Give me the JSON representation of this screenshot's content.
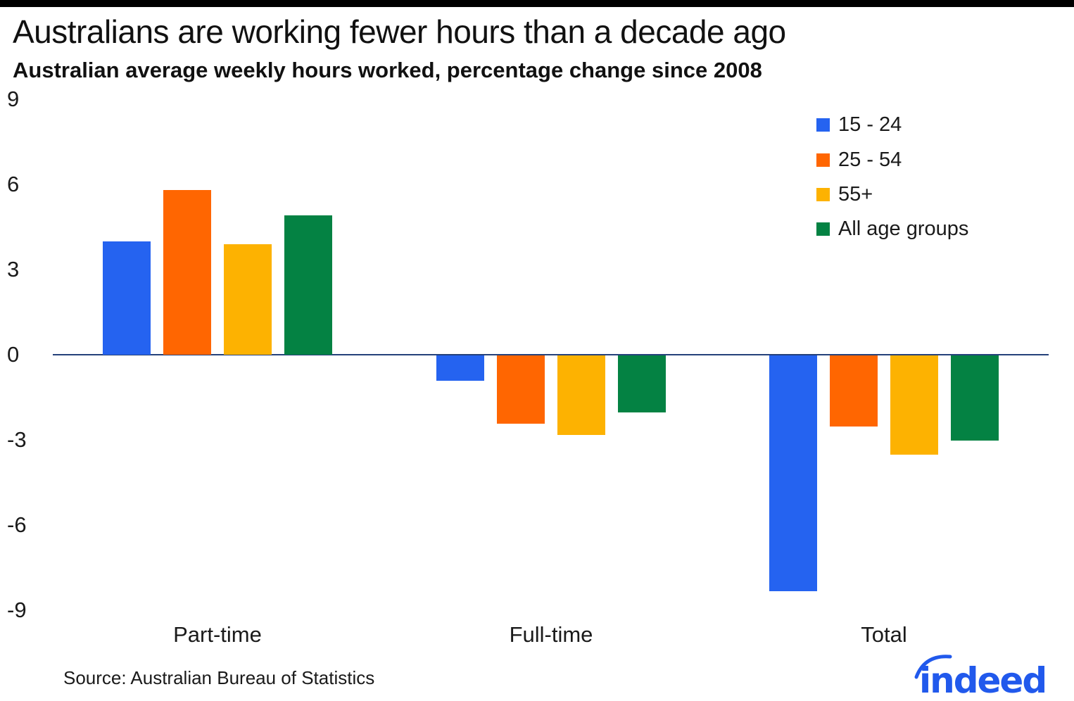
{
  "header": {
    "title": "Australians are working fewer hours than a decade ago",
    "subtitle": "Australian average weekly hours worked, percentage change since 2008"
  },
  "footer": {
    "source": "Source: Australian Bureau of Statistics"
  },
  "branding": {
    "logo_text": "indeed",
    "logo_color": "#2159EC"
  },
  "colors": {
    "axis_line": "#25417A",
    "text": "#1a1a1a",
    "background": "#ffffff",
    "top_bar": "#000000"
  },
  "chart_data": {
    "type": "bar",
    "title": "Australians are working fewer hours than a decade ago",
    "subtitle": "Australian average weekly hours worked, percentage change since 2008",
    "categories": [
      "Part-time",
      "Full-time",
      "Total"
    ],
    "series": [
      {
        "name": "15 - 24",
        "color": "#2563F0",
        "values": [
          4.0,
          -0.9,
          -8.3
        ]
      },
      {
        "name": "25 - 54",
        "color": "#FF6601",
        "values": [
          5.8,
          -2.4,
          -2.5
        ]
      },
      {
        "name": "55+",
        "color": "#FDB201",
        "values": [
          3.9,
          -2.8,
          -3.5
        ]
      },
      {
        "name": "All age groups",
        "color": "#048243",
        "values": [
          4.9,
          -2.0,
          -3.0
        ]
      }
    ],
    "yticks": [
      9,
      6,
      3,
      0,
      -3,
      -6,
      -9
    ],
    "ylim": [
      -9,
      9
    ],
    "xlabel": "",
    "ylabel": "",
    "grid": false,
    "legend_position": "top-right",
    "source": "Source: Australian Bureau of Statistics"
  }
}
